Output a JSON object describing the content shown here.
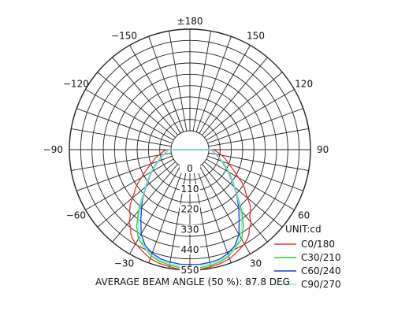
{
  "chart_data": {
    "type": "polar",
    "unit_label": "UNIT:cd",
    "footer": "AVERAGE BEAM ANGLE (50 %): 87.8 DEG",
    "angle_labels": [
      {
        "angle": 180,
        "text": "±180"
      },
      {
        "angle": 150,
        "text": "150"
      },
      {
        "angle": -150,
        "text": "−150"
      },
      {
        "angle": 120,
        "text": "120"
      },
      {
        "angle": -120,
        "text": "−120"
      },
      {
        "angle": 90,
        "text": "90"
      },
      {
        "angle": -90,
        "text": "−90"
      },
      {
        "angle": 60,
        "text": "60"
      },
      {
        "angle": -60,
        "text": "−60"
      },
      {
        "angle": 30,
        "text": "30"
      },
      {
        "angle": -30,
        "text": "−30"
      },
      {
        "angle": 0,
        "text": "0"
      }
    ],
    "radial_labels": [
      "0",
      "110",
      "220",
      "330",
      "440",
      "550"
    ],
    "radial_values": [
      0,
      110,
      220,
      330,
      440,
      550
    ],
    "rmax": 550,
    "series": [
      {
        "name": "C0/180",
        "color": "#e8302a",
        "points": [
          [
            0,
            550
          ],
          [
            -5,
            548
          ],
          [
            -10,
            540
          ],
          [
            -15,
            535
          ],
          [
            -20,
            525
          ],
          [
            -25,
            505
          ],
          [
            -30,
            485
          ],
          [
            -33,
            470
          ],
          [
            -35,
            455
          ],
          [
            -37,
            430
          ],
          [
            -40,
            410
          ],
          [
            -42,
            378
          ],
          [
            -44,
            368
          ],
          [
            -47,
            340
          ],
          [
            -50,
            305
          ],
          [
            -52,
            280
          ],
          [
            -55,
            255
          ],
          [
            -58,
            225
          ],
          [
            -61,
            190
          ],
          [
            -64,
            165
          ],
          [
            -68,
            135
          ],
          [
            -72,
            110
          ],
          [
            -76,
            92
          ],
          [
            -80,
            70
          ],
          [
            -84,
            50
          ],
          [
            -88,
            35
          ],
          [
            -90,
            20
          ],
          [
            90,
            20
          ],
          [
            88,
            35
          ],
          [
            84,
            50
          ],
          [
            80,
            72
          ],
          [
            76,
            92
          ],
          [
            72,
            112
          ],
          [
            68,
            135
          ],
          [
            64,
            165
          ],
          [
            61,
            190
          ],
          [
            58,
            228
          ],
          [
            55,
            258
          ],
          [
            52,
            282
          ],
          [
            50,
            305
          ],
          [
            47,
            345
          ],
          [
            44,
            370
          ],
          [
            42,
            380
          ],
          [
            40,
            412
          ],
          [
            37,
            432
          ],
          [
            35,
            455
          ],
          [
            33,
            470
          ],
          [
            30,
            488
          ],
          [
            25,
            506
          ],
          [
            20,
            526
          ],
          [
            15,
            536
          ],
          [
            10,
            542
          ],
          [
            5,
            548
          ],
          [
            0,
            550
          ]
        ]
      },
      {
        "name": "C30/210",
        "color": "#28d228",
        "points": [
          [
            0,
            540
          ],
          [
            -5,
            538
          ],
          [
            -10,
            532
          ],
          [
            -15,
            525
          ],
          [
            -20,
            510
          ],
          [
            -25,
            480
          ],
          [
            -30,
            455
          ],
          [
            -35,
            400
          ],
          [
            -40,
            330
          ],
          [
            -44,
            275
          ],
          [
            -48,
            230
          ],
          [
            -52,
            195
          ],
          [
            -56,
            165
          ],
          [
            -60,
            140
          ],
          [
            -65,
            110
          ],
          [
            -70,
            85
          ],
          [
            -75,
            62
          ],
          [
            -80,
            42
          ],
          [
            -85,
            25
          ],
          [
            -90,
            10
          ],
          [
            90,
            10
          ],
          [
            85,
            25
          ],
          [
            80,
            42
          ],
          [
            75,
            62
          ],
          [
            70,
            85
          ],
          [
            65,
            112
          ],
          [
            60,
            142
          ],
          [
            56,
            168
          ],
          [
            52,
            198
          ],
          [
            48,
            232
          ],
          [
            44,
            278
          ],
          [
            40,
            335
          ],
          [
            35,
            402
          ],
          [
            30,
            458
          ],
          [
            25,
            482
          ],
          [
            20,
            512
          ],
          [
            15,
            527
          ],
          [
            10,
            534
          ],
          [
            5,
            539
          ],
          [
            0,
            540
          ]
        ]
      },
      {
        "name": "C60/240",
        "color": "#1a3ae6",
        "points": [
          [
            0,
            520
          ],
          [
            -5,
            520
          ],
          [
            -10,
            516
          ],
          [
            -15,
            510
          ],
          [
            -20,
            495
          ],
          [
            -25,
            470
          ],
          [
            -30,
            425
          ],
          [
            -35,
            360
          ],
          [
            -40,
            305
          ],
          [
            -44,
            265
          ],
          [
            -48,
            225
          ],
          [
            -52,
            190
          ],
          [
            -56,
            160
          ],
          [
            -60,
            135
          ],
          [
            -65,
            105
          ],
          [
            -70,
            80
          ],
          [
            -75,
            58
          ],
          [
            -80,
            40
          ],
          [
            -85,
            24
          ],
          [
            -90,
            10
          ],
          [
            90,
            10
          ],
          [
            85,
            24
          ],
          [
            80,
            40
          ],
          [
            75,
            58
          ],
          [
            70,
            80
          ],
          [
            65,
            105
          ],
          [
            60,
            135
          ],
          [
            56,
            160
          ],
          [
            52,
            192
          ],
          [
            48,
            228
          ],
          [
            44,
            268
          ],
          [
            40,
            308
          ],
          [
            35,
            362
          ],
          [
            30,
            428
          ],
          [
            25,
            472
          ],
          [
            20,
            497
          ],
          [
            15,
            512
          ],
          [
            10,
            517
          ],
          [
            5,
            521
          ],
          [
            0,
            520
          ]
        ]
      },
      {
        "name": "C90/270",
        "color": "#7de8e0",
        "points": [
          [
            0,
            530
          ],
          [
            -5,
            528
          ],
          [
            -10,
            524
          ],
          [
            -15,
            518
          ],
          [
            -20,
            505
          ],
          [
            -25,
            478
          ],
          [
            -30,
            440
          ],
          [
            -35,
            385
          ],
          [
            -40,
            320
          ],
          [
            -44,
            270
          ],
          [
            -48,
            228
          ],
          [
            -52,
            193
          ],
          [
            -56,
            162
          ],
          [
            -60,
            137
          ],
          [
            -65,
            108
          ],
          [
            -70,
            82
          ],
          [
            -75,
            60
          ],
          [
            -80,
            41
          ],
          [
            -85,
            24
          ],
          [
            -90,
            10
          ],
          [
            90,
            10
          ],
          [
            85,
            24
          ],
          [
            80,
            41
          ],
          [
            75,
            60
          ],
          [
            70,
            82
          ],
          [
            65,
            108
          ],
          [
            60,
            137
          ],
          [
            56,
            163
          ],
          [
            52,
            195
          ],
          [
            48,
            230
          ],
          [
            44,
            272
          ],
          [
            40,
            322
          ],
          [
            35,
            388
          ],
          [
            30,
            442
          ],
          [
            25,
            480
          ],
          [
            20,
            507
          ],
          [
            15,
            520
          ],
          [
            10,
            525
          ],
          [
            5,
            529
          ],
          [
            0,
            530
          ]
        ]
      }
    ]
  }
}
